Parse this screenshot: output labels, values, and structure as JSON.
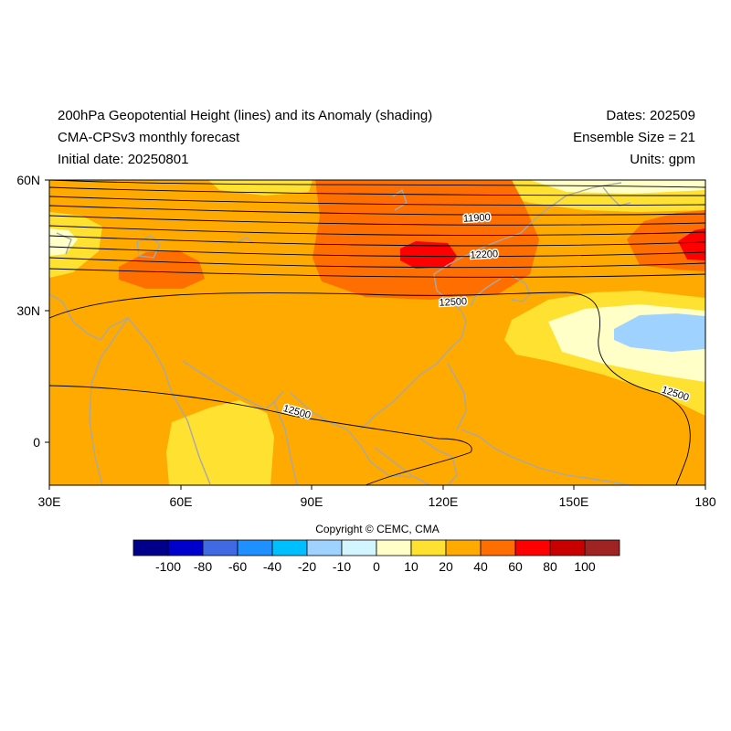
{
  "header": {
    "title_line1": "200hPa Geopotential Height (lines) and its Anomaly (shading)",
    "title_line2": "CMA-CPSv3 monthly forecast",
    "title_line3": "Initial date: 20250801",
    "right_line1": "Dates: 202509",
    "right_line2": "Ensemble Size = 21",
    "right_line3": "Units: gpm"
  },
  "axes": {
    "lon_labels": [
      "30E",
      "60E",
      "90E",
      "120E",
      "150E",
      "180"
    ],
    "lat_labels": [
      "60N",
      "30N",
      "0"
    ]
  },
  "contour_labels": [
    "11900",
    "12200",
    "12500",
    "12500",
    "12500"
  ],
  "colorbar": {
    "labels": [
      "-100",
      "-80",
      "-60",
      "-40",
      "-20",
      "-10",
      "0",
      "10",
      "20",
      "40",
      "60",
      "80",
      "100"
    ],
    "colors": [
      "#00008b",
      "#0000cd",
      "#4169e1",
      "#1e90ff",
      "#00bfff",
      "#a0d2ff",
      "#d2f5ff",
      "#ffffc8",
      "#ffe132",
      "#ffaa00",
      "#ff6e00",
      "#ff0000",
      "#c80000",
      "#a02323"
    ]
  },
  "copyright": "Copyright © CEMC, CMA"
}
